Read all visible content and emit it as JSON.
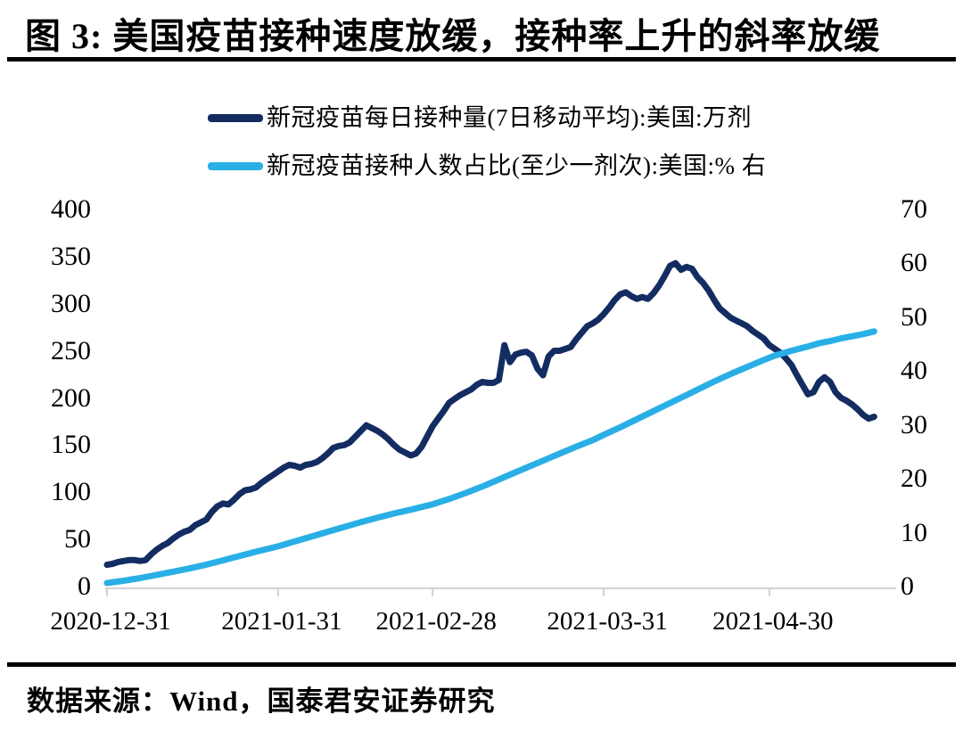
{
  "title": "图 3:  美国疫苗接种速度放缓，接种率上升的斜率放缓",
  "footer": {
    "text": "数据来源：Wind，国泰君安证券研究"
  },
  "colors": {
    "series_navy": "#132C61",
    "series_light_blue": "#29AFE6",
    "axis_line": "#D2D2D2",
    "text": "#000000",
    "divider": "#000000"
  },
  "legend": {
    "items": [
      {
        "label": "新冠疫苗每日接种量(7日移动平均):美国:万剂",
        "color": "#132C61"
      },
      {
        "label": "新冠疫苗接种人数占比(至少一剂次):美国:% 右",
        "color": "#29AFE6"
      }
    ]
  },
  "chart_data": {
    "type": "line",
    "title": "美国疫苗接种速度放缓，接种率上升的斜率放缓",
    "grid": false,
    "legend_position": "top",
    "x_axis": {
      "tick_labels": [
        "2020-12-31",
        "2021-01-31",
        "2021-02-28",
        "2021-03-31",
        "2021-04-30"
      ],
      "tick_days": [
        0,
        31,
        59,
        90,
        120
      ],
      "range_days": [
        0,
        139
      ]
    },
    "left_axis": {
      "min": 0,
      "max": 400,
      "step": 50,
      "tick_labels": [
        "0",
        "50",
        "100",
        "150",
        "200",
        "250",
        "300",
        "350",
        "400"
      ]
    },
    "right_axis": {
      "min": 0,
      "max": 70,
      "step": 10,
      "tick_labels": [
        "0",
        "10",
        "20",
        "30",
        "40",
        "50",
        "60",
        "70"
      ]
    },
    "series": [
      {
        "name": "新冠疫苗每日接种量(7日移动平均):美国:万剂",
        "axis": "left",
        "color": "#132C61",
        "points": [
          [
            0,
            25
          ],
          [
            1,
            26
          ],
          [
            2,
            28
          ],
          [
            3,
            29
          ],
          [
            4,
            30
          ],
          [
            5,
            30
          ],
          [
            6,
            29
          ],
          [
            7,
            30
          ],
          [
            8,
            36
          ],
          [
            9,
            41
          ],
          [
            10,
            45
          ],
          [
            11,
            48
          ],
          [
            12,
            53
          ],
          [
            13,
            57
          ],
          [
            14,
            60
          ],
          [
            15,
            62
          ],
          [
            16,
            67
          ],
          [
            17,
            70
          ],
          [
            18,
            73
          ],
          [
            19,
            81
          ],
          [
            20,
            87
          ],
          [
            21,
            90
          ],
          [
            22,
            89
          ],
          [
            23,
            94
          ],
          [
            24,
            100
          ],
          [
            25,
            104
          ],
          [
            26,
            105
          ],
          [
            27,
            107
          ],
          [
            28,
            112
          ],
          [
            29,
            116
          ],
          [
            30,
            120
          ],
          [
            31,
            124
          ],
          [
            32,
            128
          ],
          [
            33,
            131
          ],
          [
            34,
            130
          ],
          [
            35,
            128
          ],
          [
            36,
            131
          ],
          [
            37,
            132
          ],
          [
            38,
            134
          ],
          [
            39,
            138
          ],
          [
            40,
            143
          ],
          [
            41,
            149
          ],
          [
            42,
            151
          ],
          [
            43,
            152
          ],
          [
            44,
            155
          ],
          [
            45,
            161
          ],
          [
            46,
            167
          ],
          [
            47,
            173
          ],
          [
            48,
            170
          ],
          [
            49,
            167
          ],
          [
            50,
            163
          ],
          [
            51,
            158
          ],
          [
            52,
            152
          ],
          [
            53,
            147
          ],
          [
            54,
            144
          ],
          [
            55,
            141
          ],
          [
            56,
            143
          ],
          [
            57,
            150
          ],
          [
            58,
            161
          ],
          [
            59,
            172
          ],
          [
            60,
            180
          ],
          [
            61,
            188
          ],
          [
            62,
            197
          ],
          [
            63,
            201
          ],
          [
            64,
            205
          ],
          [
            65,
            208
          ],
          [
            66,
            211
          ],
          [
            67,
            216
          ],
          [
            68,
            219
          ],
          [
            69,
            218
          ],
          [
            70,
            218
          ],
          [
            71,
            221
          ],
          [
            72,
            258
          ],
          [
            73,
            240
          ],
          [
            74,
            248
          ],
          [
            75,
            250
          ],
          [
            76,
            251
          ],
          [
            77,
            247
          ],
          [
            78,
            233
          ],
          [
            79,
            226
          ],
          [
            80,
            246
          ],
          [
            81,
            252
          ],
          [
            82,
            252
          ],
          [
            83,
            254
          ],
          [
            84,
            256
          ],
          [
            85,
            264
          ],
          [
            86,
            271
          ],
          [
            87,
            278
          ],
          [
            88,
            281
          ],
          [
            89,
            285
          ],
          [
            90,
            291
          ],
          [
            91,
            298
          ],
          [
            92,
            306
          ],
          [
            93,
            312
          ],
          [
            94,
            314
          ],
          [
            95,
            310
          ],
          [
            96,
            307
          ],
          [
            97,
            309
          ],
          [
            98,
            307
          ],
          [
            99,
            313
          ],
          [
            100,
            321
          ],
          [
            101,
            331
          ],
          [
            102,
            342
          ],
          [
            103,
            345
          ],
          [
            104,
            338
          ],
          [
            105,
            341
          ],
          [
            106,
            339
          ],
          [
            107,
            330
          ],
          [
            108,
            324
          ],
          [
            109,
            316
          ],
          [
            110,
            306
          ],
          [
            111,
            297
          ],
          [
            112,
            292
          ],
          [
            113,
            287
          ],
          [
            114,
            284
          ],
          [
            115,
            281
          ],
          [
            116,
            278
          ],
          [
            117,
            273
          ],
          [
            118,
            269
          ],
          [
            119,
            265
          ],
          [
            120,
            258
          ],
          [
            121,
            254
          ],
          [
            122,
            250
          ],
          [
            123,
            244
          ],
          [
            124,
            237
          ],
          [
            125,
            226
          ],
          [
            126,
            216
          ],
          [
            127,
            206
          ],
          [
            128,
            208
          ],
          [
            129,
            219
          ],
          [
            130,
            224
          ],
          [
            131,
            219
          ],
          [
            132,
            208
          ],
          [
            133,
            202
          ],
          [
            134,
            199
          ],
          [
            135,
            195
          ],
          [
            136,
            190
          ],
          [
            137,
            184
          ],
          [
            138,
            180
          ],
          [
            139,
            182
          ]
        ]
      },
      {
        "name": "新冠疫苗接种人数占比(至少一剂次):美国:% 右",
        "axis": "right",
        "color": "#29AFE6",
        "points": [
          [
            0,
            1
          ],
          [
            3,
            1.4
          ],
          [
            6,
            1.9
          ],
          [
            9,
            2.5
          ],
          [
            12,
            3.1
          ],
          [
            15,
            3.7
          ],
          [
            18,
            4.4
          ],
          [
            21,
            5.2
          ],
          [
            24,
            6
          ],
          [
            27,
            6.8
          ],
          [
            31,
            7.8
          ],
          [
            34,
            8.7
          ],
          [
            37,
            9.6
          ],
          [
            40,
            10.5
          ],
          [
            43,
            11.4
          ],
          [
            46,
            12.3
          ],
          [
            49,
            13.1
          ],
          [
            52,
            13.9
          ],
          [
            55,
            14.6
          ],
          [
            59,
            15.6
          ],
          [
            62,
            16.6
          ],
          [
            65,
            17.7
          ],
          [
            68,
            18.9
          ],
          [
            71,
            20.2
          ],
          [
            73,
            21.1
          ],
          [
            76,
            22.4
          ],
          [
            79,
            23.7
          ],
          [
            82,
            25
          ],
          [
            85,
            26.3
          ],
          [
            88,
            27.5
          ],
          [
            90,
            28.5
          ],
          [
            93,
            29.9
          ],
          [
            96,
            31.4
          ],
          [
            99,
            32.9
          ],
          [
            102,
            34.4
          ],
          [
            105,
            35.9
          ],
          [
            108,
            37.4
          ],
          [
            110,
            38.4
          ],
          [
            113,
            39.8
          ],
          [
            116,
            41.1
          ],
          [
            119,
            42.4
          ],
          [
            121,
            43.2
          ],
          [
            124,
            44.1
          ],
          [
            127,
            44.9
          ],
          [
            129,
            45.5
          ],
          [
            131,
            45.9
          ],
          [
            133,
            46.4
          ],
          [
            135,
            46.8
          ],
          [
            137,
            47.2
          ],
          [
            139,
            47.7
          ]
        ]
      }
    ]
  }
}
